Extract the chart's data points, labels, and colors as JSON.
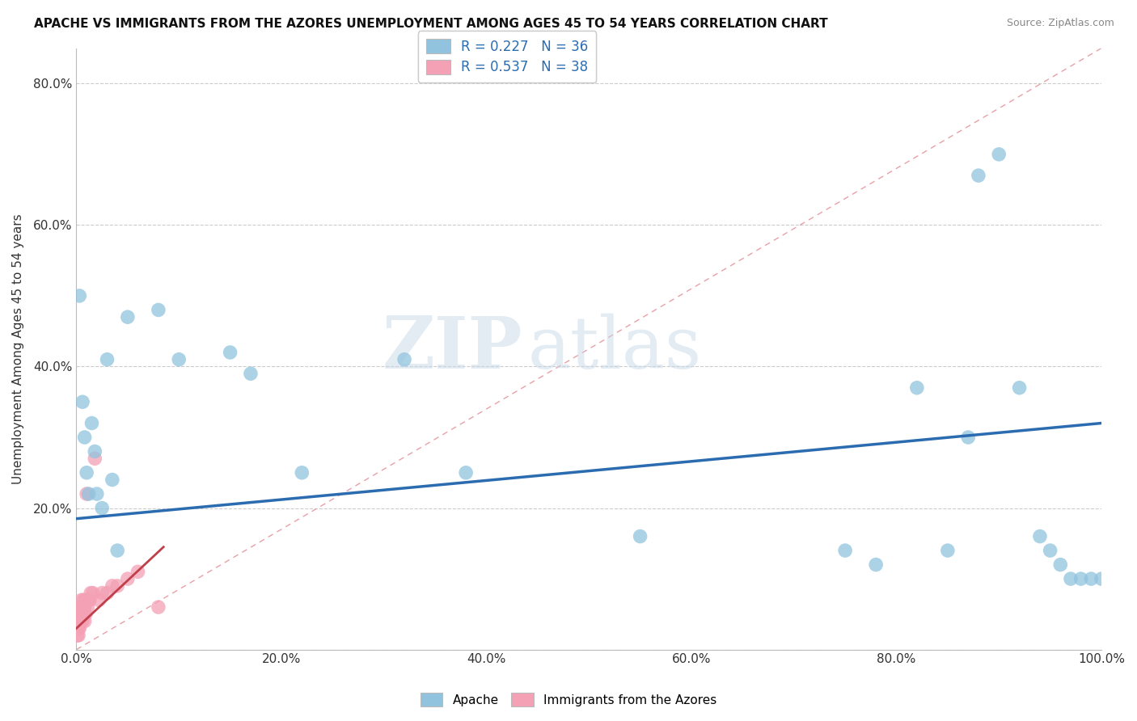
{
  "title": "APACHE VS IMMIGRANTS FROM THE AZORES UNEMPLOYMENT AMONG AGES 45 TO 54 YEARS CORRELATION CHART",
  "source": "Source: ZipAtlas.com",
  "ylabel": "Unemployment Among Ages 45 to 54 years",
  "xlim": [
    0,
    1.0
  ],
  "ylim": [
    0,
    0.85
  ],
  "xticks": [
    0,
    0.2,
    0.4,
    0.6,
    0.8,
    1.0
  ],
  "xticklabels": [
    "0.0%",
    "20.0%",
    "40.0%",
    "60.0%",
    "80.0%",
    "100.0%"
  ],
  "yticks": [
    0.0,
    0.2,
    0.4,
    0.6,
    0.8
  ],
  "yticklabels": [
    "",
    "20.0%",
    "40.0%",
    "60.0%",
    "80.0%"
  ],
  "apache_R": 0.227,
  "apache_N": 36,
  "azores_R": 0.537,
  "azores_N": 38,
  "apache_color": "#91C3DE",
  "azores_color": "#F4A0B5",
  "apache_line_color": "#2B6CB0",
  "azores_line_color": "#C0404A",
  "ref_line_color": "#E8A0A8",
  "legend_label_apache": "Apache",
  "legend_label_azores": "Immigrants from the Azores",
  "apache_x": [
    0.003,
    0.006,
    0.008,
    0.01,
    0.012,
    0.015,
    0.018,
    0.02,
    0.025,
    0.03,
    0.035,
    0.04,
    0.05,
    0.08,
    0.1,
    0.15,
    0.17,
    0.22,
    0.32,
    0.38,
    0.55,
    0.75,
    0.78,
    0.82,
    0.85,
    0.87,
    0.88,
    0.9,
    0.92,
    0.94,
    0.95,
    0.96,
    0.97,
    0.98,
    0.99,
    1.0
  ],
  "apache_y": [
    0.5,
    0.35,
    0.3,
    0.25,
    0.22,
    0.32,
    0.28,
    0.22,
    0.2,
    0.41,
    0.24,
    0.14,
    0.47,
    0.48,
    0.41,
    0.42,
    0.39,
    0.25,
    0.41,
    0.25,
    0.16,
    0.14,
    0.12,
    0.37,
    0.14,
    0.3,
    0.67,
    0.7,
    0.37,
    0.16,
    0.14,
    0.12,
    0.1,
    0.1,
    0.1,
    0.1
  ],
  "azores_x": [
    0.001,
    0.001,
    0.001,
    0.001,
    0.002,
    0.002,
    0.002,
    0.002,
    0.003,
    0.003,
    0.003,
    0.004,
    0.004,
    0.005,
    0.005,
    0.006,
    0.006,
    0.007,
    0.007,
    0.008,
    0.008,
    0.009,
    0.009,
    0.01,
    0.011,
    0.012,
    0.013,
    0.014,
    0.016,
    0.018,
    0.022,
    0.025,
    0.03,
    0.035,
    0.04,
    0.05,
    0.06,
    0.08
  ],
  "azores_y": [
    0.02,
    0.03,
    0.04,
    0.05,
    0.02,
    0.03,
    0.04,
    0.05,
    0.03,
    0.04,
    0.05,
    0.04,
    0.06,
    0.05,
    0.07,
    0.04,
    0.06,
    0.05,
    0.07,
    0.04,
    0.06,
    0.05,
    0.07,
    0.22,
    0.06,
    0.07,
    0.07,
    0.08,
    0.08,
    0.27,
    0.07,
    0.08,
    0.08,
    0.09,
    0.09,
    0.1,
    0.11,
    0.06
  ],
  "watermark_zip": "ZIP",
  "watermark_atlas": "atlas",
  "background_color": "#FFFFFF",
  "grid_color": "#CCCCCC"
}
